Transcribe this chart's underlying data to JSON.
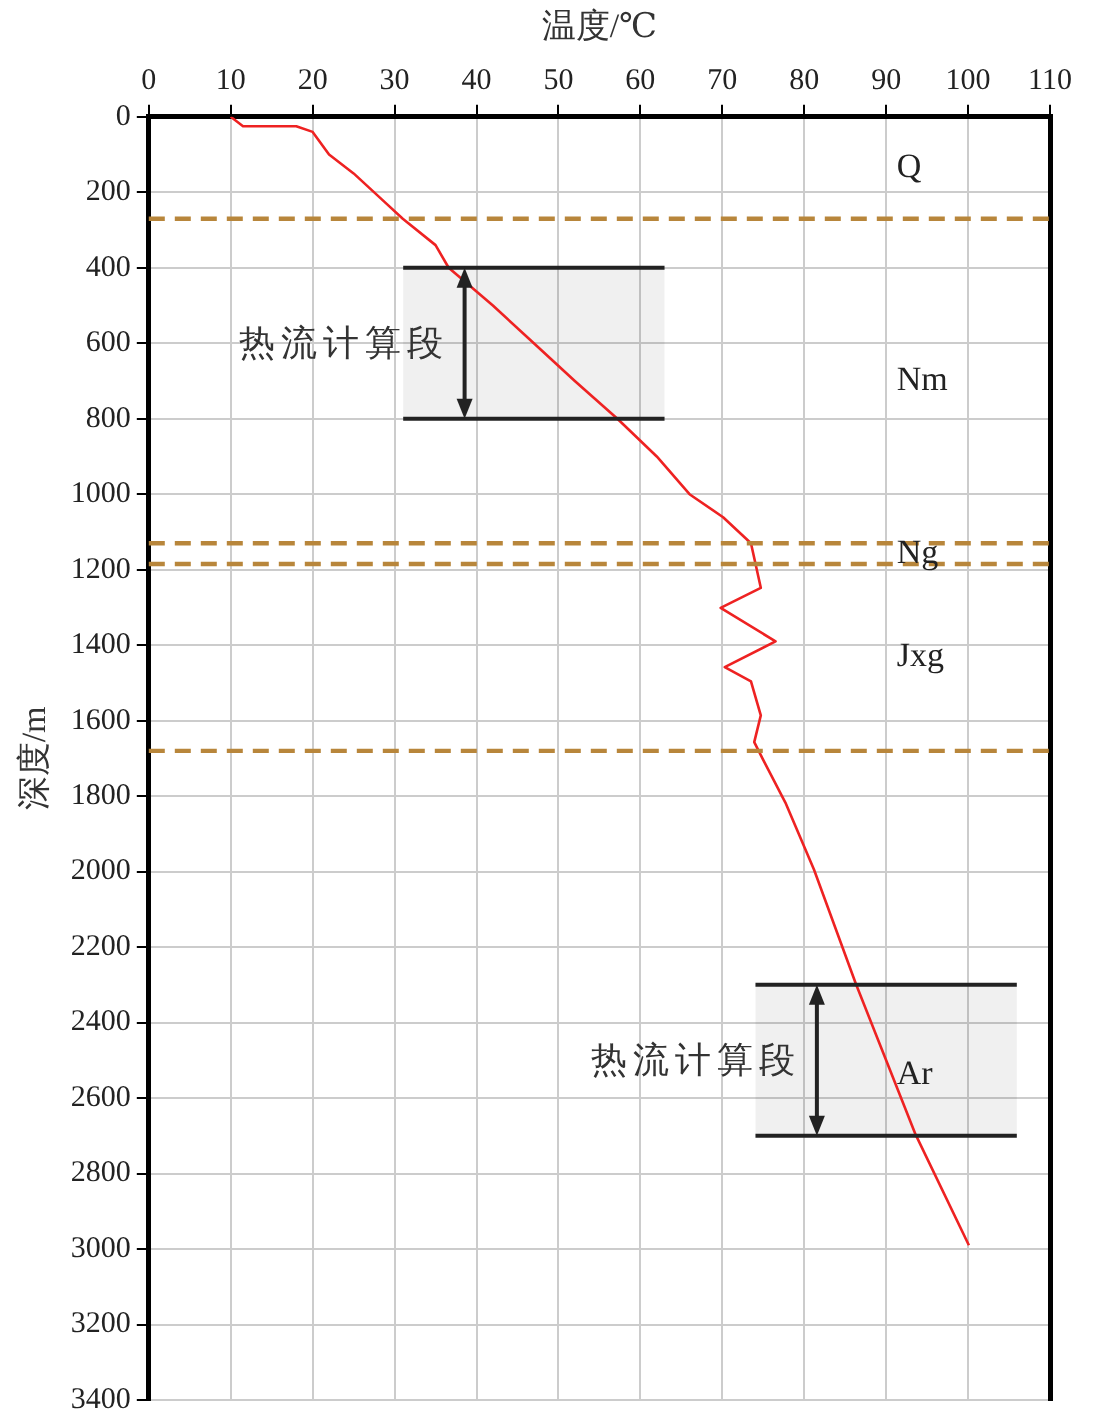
{
  "chart_data": {
    "type": "line",
    "xlabel": "温度/℃",
    "ylabel": "深度/m",
    "series": [
      {
        "color": "#ee2222",
        "x": [
          10,
          11.5,
          18,
          20,
          22,
          25,
          29,
          31,
          35,
          36.6,
          42,
          47,
          52,
          57.2,
          62,
          66,
          70.1,
          73.5,
          74.7,
          69.8,
          76.5,
          70.3,
          73.5,
          74.7,
          73.9,
          74.9,
          77.7,
          81.2,
          86.3,
          90,
          93.6,
          100.1
        ],
        "values": [
          0,
          25,
          25,
          40,
          100,
          150,
          230,
          270,
          340,
          400,
          500,
          600,
          700,
          800,
          900,
          1000,
          1061,
          1130,
          1248,
          1301,
          1390,
          1458,
          1496,
          1586,
          1657,
          1700,
          1817,
          1995,
          2297,
          2500,
          2697,
          2990
        ]
      }
    ],
    "xlim": [
      0,
      110
    ],
    "xticks": [
      0,
      10,
      20,
      30,
      40,
      50,
      60,
      70,
      80,
      90,
      100,
      110
    ],
    "ylim": [
      3400,
      0
    ],
    "yticks": [
      0,
      200,
      400,
      600,
      800,
      1000,
      1200,
      1400,
      1600,
      1800,
      2000,
      2200,
      2400,
      2600,
      2800,
      3000,
      3200,
      3400
    ],
    "grid": true,
    "marker": "none",
    "line_style": "solid",
    "ref_lines": [
      {
        "axis": "y",
        "value": 270,
        "color": "#b8863b",
        "line_style": "dashed"
      },
      {
        "axis": "y",
        "value": 1130,
        "color": "#b8863b",
        "line_style": "dashed"
      },
      {
        "axis": "y",
        "value": 1185,
        "color": "#b8863b",
        "line_style": "dashed"
      },
      {
        "axis": "y",
        "value": 1680,
        "color": "#b8863b",
        "line_style": "dashed"
      }
    ],
    "bands": [
      {
        "axis": "y",
        "from": 400,
        "to": 800,
        "label": "热流计算段"
      },
      {
        "axis": "y",
        "from": 2300,
        "to": 2700,
        "label": "热流计算段"
      }
    ],
    "annotations": [
      "Q",
      "Nm",
      "Ng",
      "Jxg",
      "Ar"
    ]
  }
}
